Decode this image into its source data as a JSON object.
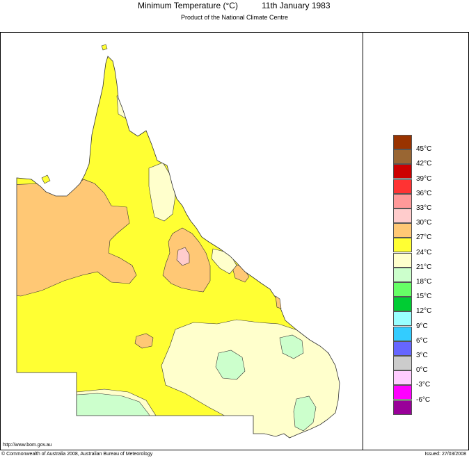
{
  "title": {
    "heading": "Minimum Temperature (°C)",
    "date": "11th January 1983",
    "subtitle": "Product of the National Climate Centre"
  },
  "map": {
    "region": "Queensland",
    "land_colors": {
      "24_27": "#ffff33",
      "21_24": "#ffffcc",
      "27_30": "#ffc875",
      "30_33": "#ffcccc",
      "18_21": "#ccffcc"
    }
  },
  "legend": {
    "items": [
      {
        "label": "",
        "color": "#993300"
      },
      {
        "label": "45°C",
        "color": "#996633"
      },
      {
        "label": "42°C",
        "color": "#cc0000"
      },
      {
        "label": "39°C",
        "color": "#ff3333"
      },
      {
        "label": "36°C",
        "color": "#ff9999"
      },
      {
        "label": "33°C",
        "color": "#ffcccc"
      },
      {
        "label": "30°C",
        "color": "#ffc875"
      },
      {
        "label": "27°C",
        "color": "#ffff33"
      },
      {
        "label": "24°C",
        "color": "#ffffcc"
      },
      {
        "label": "21°C",
        "color": "#ccffcc"
      },
      {
        "label": "18°C",
        "color": "#66ff66"
      },
      {
        "label": "15°C",
        "color": "#00cc33"
      },
      {
        "label": "12°C",
        "color": "#99ffff"
      },
      {
        "label": "9°C",
        "color": "#33ccff"
      },
      {
        "label": "6°C",
        "color": "#6666ff"
      },
      {
        "label": "3°C",
        "color": "#cccccc"
      },
      {
        "label": "0°C",
        "color": "#ffccff"
      },
      {
        "label": "-3°C",
        "color": "#ff00ff"
      },
      {
        "label": "-6°C",
        "color": "#990099"
      }
    ]
  },
  "footer": {
    "url": "http://www.bom.gov.au",
    "copyright": "© Commonwealth of Australia 2008, Australian Bureau of Meteorology",
    "issued": "Issued: 27/03/2008"
  }
}
